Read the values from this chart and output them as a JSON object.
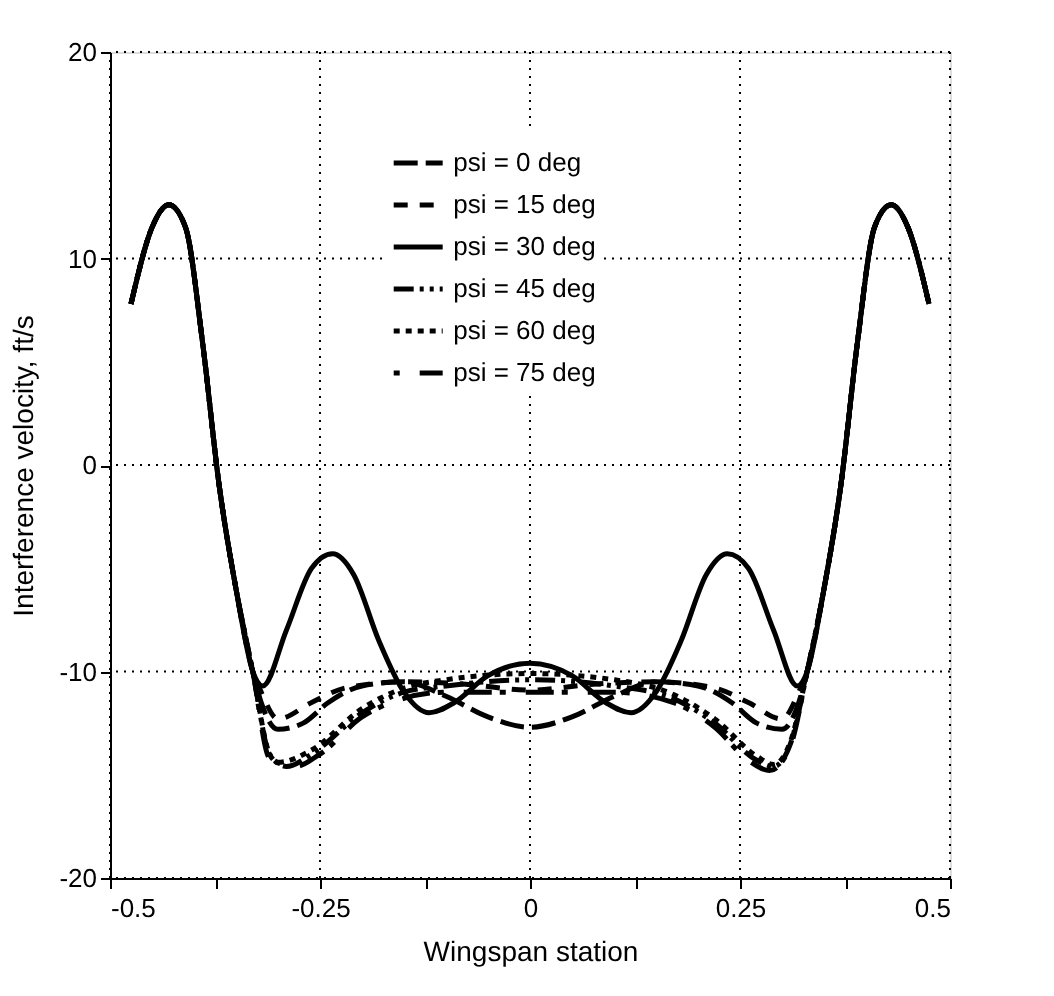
{
  "chart_data": {
    "type": "line",
    "xlabel": "Wingspan station",
    "ylabel": "Interference velocity, ft/s",
    "xlim": [
      -0.5,
      0.5
    ],
    "ylim": [
      -20,
      20
    ],
    "xticks": [
      -0.5,
      {
        "value": -0.375,
        "label": null
      },
      -0.25,
      {
        "value": -0.125,
        "label": null
      },
      0,
      {
        "value": 0.125,
        "label": null
      },
      0.25,
      {
        "value": 0.375,
        "label": null
      },
      0.5
    ],
    "yticks": [
      -20,
      -10,
      0,
      10,
      20
    ],
    "grid": true,
    "legend": "top",
    "marker": "none",
    "series": [
      {
        "name": "psi = 0 deg",
        "color": "#000000",
        "line_style": "dashed",
        "x": [
          -0.475,
          -0.45,
          -0.43,
          -0.41,
          -0.39,
          -0.37,
          -0.35,
          -0.33,
          -0.32,
          -0.3,
          -0.27,
          -0.24,
          -0.2,
          -0.15,
          -0.1,
          -0.05,
          0,
          0.05,
          0.1,
          0.15,
          0.2,
          0.24,
          0.27,
          0.3,
          0.32,
          0.33,
          0.35,
          0.37,
          0.39,
          0.41,
          0.43,
          0.45,
          0.475
        ],
        "values": [
          7.8,
          11.5,
          12.6,
          11.5,
          6,
          -1,
          -6,
          -10,
          -11.5,
          -12.8,
          -12.5,
          -11.5,
          -10.7,
          -10.5,
          -11.2,
          -12.2,
          -12.7,
          -12.2,
          -11.2,
          -10.5,
          -10.7,
          -11.5,
          -12.5,
          -12.8,
          -11.5,
          -10,
          -6,
          -1,
          6,
          11.5,
          12.6,
          11.5,
          7.8
        ]
      },
      {
        "name": "psi = 15 deg",
        "color": "#000000",
        "line_style": "dashed",
        "x": [
          -0.475,
          -0.45,
          -0.43,
          -0.41,
          -0.39,
          -0.37,
          -0.35,
          -0.33,
          -0.32,
          -0.3,
          -0.26,
          -0.22,
          -0.15,
          -0.08,
          0,
          0.08,
          0.15,
          0.22,
          0.26,
          0.3,
          0.32,
          0.33,
          0.35,
          0.37,
          0.39,
          0.41,
          0.43,
          0.45,
          0.475
        ],
        "values": [
          7.8,
          11.5,
          12.6,
          11.5,
          6,
          -1,
          -6,
          -10,
          -11,
          -12.3,
          -11.5,
          -10.8,
          -10.5,
          -10.6,
          -10.9,
          -10.6,
          -10.5,
          -10.8,
          -11.5,
          -12.3,
          -11,
          -10,
          -6,
          -1,
          6,
          11.5,
          12.6,
          11.5,
          7.8
        ]
      },
      {
        "name": "psi = 30 deg",
        "color": "#000000",
        "line_style": "solid",
        "x": [
          -0.475,
          -0.45,
          -0.43,
          -0.41,
          -0.39,
          -0.37,
          -0.35,
          -0.33,
          -0.318,
          -0.29,
          -0.26,
          -0.235,
          -0.21,
          -0.18,
          -0.15,
          -0.12,
          -0.09,
          -0.05,
          0,
          0.05,
          0.09,
          0.12,
          0.15,
          0.18,
          0.21,
          0.235,
          0.26,
          0.29,
          0.318,
          0.33,
          0.35,
          0.37,
          0.39,
          0.41,
          0.43,
          0.45,
          0.475
        ],
        "values": [
          7.8,
          11.5,
          12.6,
          11.5,
          6,
          -1,
          -6,
          -10,
          -10.7,
          -8,
          -5,
          -4.3,
          -5.3,
          -8.5,
          -11,
          -12,
          -11.5,
          -10.2,
          -9.6,
          -10.2,
          -11.5,
          -12,
          -11,
          -8.5,
          -5.3,
          -4.3,
          -5,
          -8,
          -10.7,
          -10,
          -6,
          -1,
          6,
          11.5,
          12.6,
          11.5,
          7.8
        ]
      },
      {
        "name": "psi = 45 deg",
        "color": "#000000",
        "line_style": "dashed",
        "x": [
          -0.475,
          -0.45,
          -0.43,
          -0.41,
          -0.39,
          -0.37,
          -0.35,
          -0.33,
          -0.31,
          -0.29,
          -0.26,
          -0.2,
          -0.15,
          -0.1,
          0,
          0.1,
          0.17,
          0.22,
          0.27,
          0.29,
          0.31,
          0.33,
          0.35,
          0.37,
          0.39,
          0.41,
          0.43,
          0.45,
          0.475
        ],
        "values": [
          7.8,
          11.5,
          12.6,
          11.5,
          6,
          -1,
          -6,
          -10,
          -14,
          -14.6,
          -14,
          -12,
          -11,
          -10.7,
          -10.4,
          -10.7,
          -11.3,
          -12.5,
          -14.3,
          -14.6,
          -13.5,
          -10,
          -6,
          -1,
          6,
          11.5,
          12.6,
          11.5,
          7.8
        ]
      },
      {
        "name": "psi = 60 deg",
        "color": "#000000",
        "line_style": "dotted",
        "x": [
          -0.475,
          -0.45,
          -0.43,
          -0.41,
          -0.39,
          -0.37,
          -0.35,
          -0.33,
          -0.31,
          -0.3,
          -0.26,
          -0.2,
          -0.15,
          -0.1,
          0,
          0.1,
          0.17,
          0.22,
          0.27,
          0.29,
          0.31,
          0.33,
          0.35,
          0.37,
          0.39,
          0.41,
          0.43,
          0.45,
          0.475
        ],
        "values": [
          7.8,
          11.5,
          12.6,
          11.5,
          6,
          -1,
          -6,
          -10,
          -14,
          -14.4,
          -13.8,
          -11.8,
          -10.8,
          -10.4,
          -10.1,
          -10.4,
          -11.1,
          -12.3,
          -14.1,
          -14.5,
          -13.4,
          -10,
          -6,
          -1,
          6,
          11.5,
          12.6,
          11.5,
          7.8
        ]
      },
      {
        "name": "psi = 75 deg",
        "color": "#000000",
        "line_style": "dashed",
        "x": [
          -0.475,
          -0.45,
          -0.43,
          -0.41,
          -0.39,
          -0.37,
          -0.35,
          -0.33,
          -0.31,
          -0.28,
          -0.25,
          -0.2,
          -0.15,
          -0.1,
          0,
          0.1,
          0.17,
          0.22,
          0.26,
          0.285,
          0.31,
          0.33,
          0.35,
          0.37,
          0.39,
          0.41,
          0.43,
          0.45,
          0.475
        ],
        "values": [
          7.8,
          11.5,
          12.6,
          11.5,
          6,
          -1,
          -6,
          -10,
          -14.2,
          -14.6,
          -14,
          -12.2,
          -11.3,
          -11,
          -11,
          -11,
          -11.5,
          -12.7,
          -14.3,
          -14.8,
          -13.6,
          -10,
          -6,
          -1,
          6,
          11.5,
          12.6,
          11.5,
          7.8
        ]
      }
    ]
  }
}
